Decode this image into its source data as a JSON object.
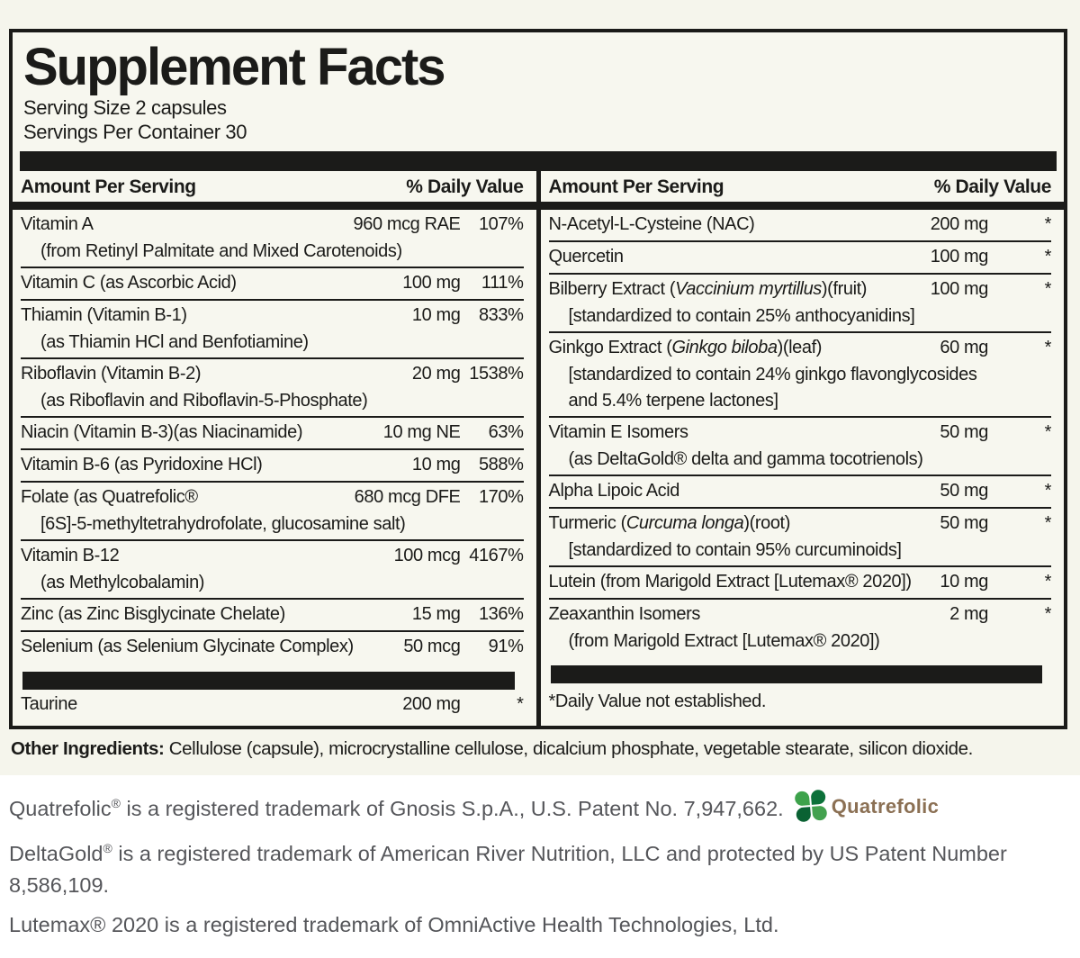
{
  "panel": {
    "title": "Supplement Facts",
    "serving_size": "Serving Size 2 capsules",
    "servings_per_container": "Servings Per Container 30",
    "header": {
      "amount": "Amount Per Serving",
      "daily_value": "% Daily Value"
    },
    "left_rows": [
      {
        "name": "Vitamin A",
        "sub": [
          "(from Retinyl Palmitate and Mixed Carotenoids)"
        ],
        "amount": "960 mcg RAE",
        "dv": "107%"
      },
      {
        "name": "Vitamin C (as Ascorbic Acid)",
        "amount": "100 mg",
        "dv": "111%"
      },
      {
        "name": "Thiamin (Vitamin B-1)",
        "sub": [
          "(as Thiamin HCl and Benfotiamine)"
        ],
        "amount": "10 mg",
        "dv": "833%"
      },
      {
        "name": "Riboflavin (Vitamin B-2)",
        "sub": [
          "(as Riboflavin and Riboflavin-5-Phosphate)"
        ],
        "amount": "20 mg",
        "dv": "1538%"
      },
      {
        "name": "Niacin (Vitamin B-3)(as Niacinamide)",
        "amount": "10 mg NE",
        "dv": "63%"
      },
      {
        "name": "Vitamin B-6 (as Pyridoxine HCl)",
        "amount": "10 mg",
        "dv": "588%"
      },
      {
        "name": "Folate (as Quatrefolic®",
        "sub": [
          "[6S]-5-methyltetrahydrofolate, glucosamine salt)"
        ],
        "amount": "680 mcg DFE",
        "dv": "170%"
      },
      {
        "name": "Vitamin B-12",
        "sub": [
          "(as Methylcobalamin)"
        ],
        "amount": "100 mcg",
        "dv": "4167%"
      },
      {
        "name": "Zinc (as Zinc Bisglycinate Chelate)",
        "amount": "15 mg",
        "dv": "136%"
      },
      {
        "name": "Selenium (as Selenium Glycinate Complex)",
        "amount": "50 mcg",
        "dv": "91%"
      },
      {
        "bar": true
      },
      {
        "name": "Taurine",
        "amount": "200 mg",
        "dv": "*"
      }
    ],
    "right_rows": [
      {
        "name": "N-Acetyl-L-Cysteine (NAC)",
        "amount": "200 mg",
        "dv": "*"
      },
      {
        "name": "Quercetin",
        "amount": "100 mg",
        "dv": "*"
      },
      {
        "name": "Bilberry Extract (<i>Vaccinium myrtillus</i>)(fruit)",
        "sub": [
          "[standardized to contain 25% anthocyanidins]"
        ],
        "amount": "100 mg",
        "dv": "*"
      },
      {
        "name": "Ginkgo Extract (<i>Ginkgo biloba</i>)(leaf)",
        "sub": [
          "[standardized to contain 24% ginkgo flavonglycosides",
          "and 5.4% terpene lactones]"
        ],
        "amount": "60 mg",
        "dv": "*"
      },
      {
        "name": "Vitamin E Isomers",
        "sub": [
          "(as DeltaGold® delta and gamma tocotrienols)"
        ],
        "amount": "50 mg",
        "dv": "*"
      },
      {
        "name": "Alpha Lipoic Acid",
        "amount": "50 mg",
        "dv": "*"
      },
      {
        "name": "Turmeric (<i>Curcuma longa</i>)(root)",
        "sub": [
          "[standardized to contain 95% curcuminoids]"
        ],
        "amount": "50 mg",
        "dv": "*"
      },
      {
        "name": "Lutein (from Marigold Extract [Lutemax® 2020])",
        "amount": "10 mg",
        "dv": "*"
      },
      {
        "name": "Zeaxanthin Isomers",
        "sub": [
          "(from Marigold Extract [Lutemax® 2020])"
        ],
        "amount": "2 mg",
        "dv": "*"
      },
      {
        "bar": true
      },
      {
        "footnote": "*Daily Value not established."
      }
    ]
  },
  "other_ingredients": {
    "label": "Other Ingredients:",
    "text": " Cellulose (capsule), microcrystalline cellulose, dicalcium phosphate, vegetable stearate, silicon dioxide."
  },
  "trademarks": [
    {
      "html": "Quatrefolic<sup>®</sup> is a registered trademark of Gnosis S.p.A., U.S. Patent No. 7,947,662.",
      "logo": true
    },
    {
      "html": "DeltaGold<sup>®</sup> is a registered trademark of American River Nutrition, LLC and protected by US Patent Number 8,586,109."
    },
    {
      "html": "Lutemax® 2020 is a registered trademark of OmniActive Health Technologies, Ltd."
    }
  ],
  "logo": {
    "wordmark": "Quatrefolic",
    "colors": {
      "leaf_top_left": "#3da24b",
      "leaf_top_right": "#0c713a",
      "leaf_bottom_left": "#0a6233",
      "leaf_bottom_right": "#43a14f",
      "wordmark_text": "#8b7054"
    }
  },
  "colors": {
    "panel_background": "#f5f5ec",
    "panel_ink": "#1b1b19",
    "trademark_text": "#55565a"
  }
}
